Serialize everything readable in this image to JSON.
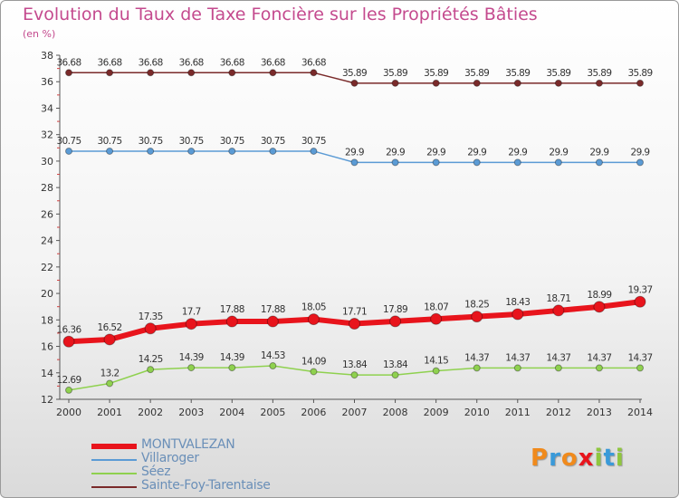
{
  "header": {
    "title": "Evolution du Taux de Taxe Foncière sur les Propriétés Bâties",
    "subtitle": "(en %)"
  },
  "chart_data": {
    "type": "line",
    "title": "Evolution du Taux de Taxe Foncière sur les Propriétés Bâties",
    "ylabel": "(en %)",
    "xlabel": "",
    "ylim": [
      12,
      38
    ],
    "yticks": [
      12,
      14,
      16,
      18,
      20,
      22,
      24,
      26,
      28,
      30,
      32,
      34,
      36,
      38
    ],
    "grid": false,
    "categories": [
      "2000",
      "2001",
      "2002",
      "2003",
      "2004",
      "2005",
      "2006",
      "2007",
      "2008",
      "2009",
      "2010",
      "2011",
      "2012",
      "2013",
      "2014"
    ],
    "series": [
      {
        "name": "MONTVALEZAN",
        "color": "#e8141c",
        "values": [
          16.36,
          16.52,
          17.35,
          17.7,
          17.88,
          17.88,
          18.05,
          17.71,
          17.89,
          18.07,
          18.25,
          18.43,
          18.71,
          18.99,
          19.37
        ],
        "labels": [
          "16.36",
          "16.52",
          "17.35",
          "17.7",
          "17.88",
          "17.88",
          "18.05",
          "17.71",
          "17.89",
          "18.07",
          "18.25",
          "18.43",
          "18.71",
          "18.99",
          "19.37"
        ]
      },
      {
        "name": "Villaroger",
        "color": "#5b9bd5",
        "values": [
          30.75,
          30.75,
          30.75,
          30.75,
          30.75,
          30.75,
          30.75,
          29.9,
          29.9,
          29.9,
          29.9,
          29.9,
          29.9,
          29.9,
          29.9
        ],
        "labels": [
          "30.75",
          "30.75",
          "30.75",
          "30.75",
          "30.75",
          "30.75",
          "30.75",
          "29.9",
          "29.9",
          "29.9",
          "29.9",
          "29.9",
          "29.9",
          "29.9",
          "29.9"
        ]
      },
      {
        "name": "Séez",
        "color": "#8fd14f",
        "values": [
          12.69,
          13.2,
          14.25,
          14.39,
          14.39,
          14.53,
          14.09,
          13.84,
          13.84,
          14.15,
          14.37,
          14.37,
          14.37,
          14.37,
          14.37
        ],
        "labels": [
          "12.69",
          "13.2",
          "14.25",
          "14.39",
          "14.39",
          "14.53",
          "14.09",
          "13.84",
          "13.84",
          "14.15",
          "14.37",
          "14.37",
          "14.37",
          "14.37",
          "14.37"
        ]
      },
      {
        "name": "Sainte-Foy-Tarentaise",
        "color": "#7a2a2a",
        "values": [
          36.68,
          36.68,
          36.68,
          36.68,
          36.68,
          36.68,
          36.68,
          35.89,
          35.89,
          35.89,
          35.89,
          35.89,
          35.89,
          35.89,
          35.89
        ],
        "labels": [
          "36.68",
          "36.68",
          "36.68",
          "36.68",
          "36.68",
          "36.68",
          "36.68",
          "35.89",
          "35.89",
          "35.89",
          "35.89",
          "35.89",
          "35.89",
          "35.89",
          "35.89"
        ]
      }
    ],
    "legend": [
      "MONTVALEZAN",
      "Villaroger",
      "Séez",
      "Sainte-Foy-Tarentaise"
    ],
    "legend_position": "bottom-left"
  },
  "brand": {
    "letters": [
      "P",
      "r",
      "o",
      "x",
      "i",
      "t",
      "i"
    ],
    "colors": [
      "#f08a1c",
      "#3a9ad9",
      "#f08a1c",
      "#e8141c",
      "#8fc63f",
      "#3a9ad9",
      "#8fc63f"
    ]
  }
}
